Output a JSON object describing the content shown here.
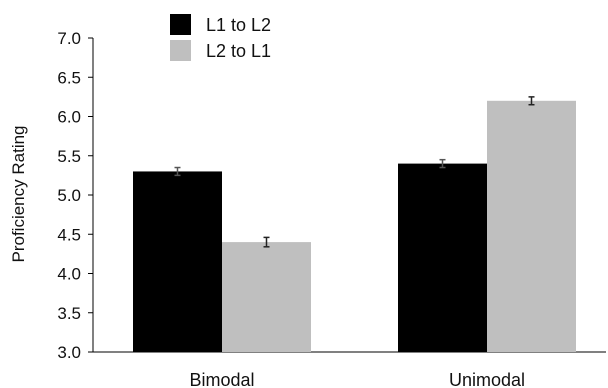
{
  "chart_data": {
    "type": "bar",
    "categories": [
      "Bimodal",
      "Unimodal"
    ],
    "series": [
      {
        "name": "L1 to L2",
        "color": "#000000",
        "values": [
          5.3,
          5.4
        ],
        "errors": [
          0.05,
          0.05
        ]
      },
      {
        "name": "L2 to L1",
        "color": "#bfbfbf",
        "values": [
          4.4,
          6.2
        ],
        "errors": [
          0.06,
          0.05
        ]
      }
    ],
    "ylabel": "Proficiency Rating",
    "ylim": [
      3.0,
      7.0
    ],
    "yticks": [
      "3.0",
      "3.5",
      "4.0",
      "4.5",
      "5.0",
      "5.5",
      "6.0",
      "6.5",
      "7.0"
    ],
    "legend_position": "top-left",
    "grid": false
  }
}
